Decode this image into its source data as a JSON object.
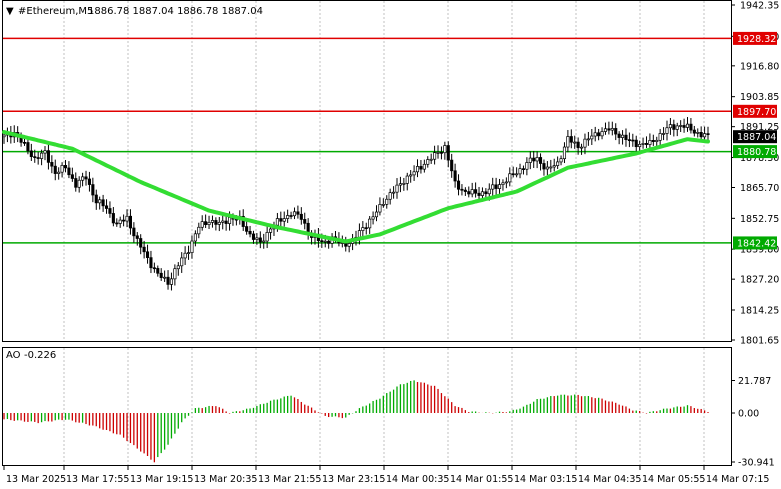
{
  "header": {
    "marker": "▼",
    "symbol_timeframe": "#Ethereum,M5",
    "ohlc": "1886.78 1887.04 1886.78 1887.04"
  },
  "ao_header": {
    "label": "AO",
    "value": "-0.226"
  },
  "price_axis": {
    "ticks": [
      "1942.35",
      "1929.20",
      "1916.80",
      "1903.85",
      "1891.25",
      "1878.30",
      "1865.70",
      "1852.75",
      "1839.80",
      "1827.20",
      "1814.25",
      "1801.65"
    ],
    "ylim": [
      1801.65,
      1942.35
    ]
  },
  "ao_axis": {
    "ticks": [
      "21.787",
      "0.00",
      "-30.941"
    ],
    "ylim": [
      -30.941,
      21.787
    ]
  },
  "time_axis": {
    "labels": [
      "13 Mar 2025",
      "13 Mar 17:55",
      "13 Mar 19:15",
      "13 Mar 20:35",
      "13 Mar 21:55",
      "13 Mar 23:15",
      "14 Mar 00:35",
      "14 Mar 01:55",
      "14 Mar 03:15",
      "14 Mar 04:35",
      "14 Mar 05:55",
      "14 Mar 07:15"
    ]
  },
  "levels": [
    {
      "value": "1928.32",
      "color": "#e00000"
    },
    {
      "value": "1897.70",
      "color": "#e00000"
    },
    {
      "value": "1880.78",
      "color": "#00aa00"
    },
    {
      "value": "1842.42",
      "color": "#00aa00"
    }
  ],
  "current_price": "1887.04",
  "colors": {
    "candle": "#000000",
    "ma_line": "#33dd33",
    "ao_up": "#00aa00",
    "ao_down": "#cc0000",
    "grid": "#999999",
    "current_tag": "#000000"
  },
  "chart_data": {
    "type": "candlestick",
    "x_labels": [
      "13 Mar 2025",
      "13 Mar 17:55",
      "13 Mar 19:15",
      "13 Mar 20:35",
      "13 Mar 21:55",
      "13 Mar 23:15",
      "14 Mar 00:35",
      "14 Mar 01:55",
      "14 Mar 03:15",
      "14 Mar 04:35",
      "14 Mar 05:55",
      "14 Mar 07:15"
    ],
    "close_keypoints": [
      [
        0,
        1887
      ],
      [
        3,
        1889
      ],
      [
        6,
        1883
      ],
      [
        9,
        1878
      ],
      [
        12,
        1880
      ],
      [
        15,
        1872
      ],
      [
        18,
        1874
      ],
      [
        21,
        1867
      ],
      [
        24,
        1870
      ],
      [
        27,
        1860
      ],
      [
        30,
        1857
      ],
      [
        33,
        1850
      ],
      [
        36,
        1853
      ],
      [
        39,
        1843
      ],
      [
        42,
        1836
      ],
      [
        45,
        1829
      ],
      [
        48,
        1826
      ],
      [
        51,
        1833
      ],
      [
        54,
        1840
      ],
      [
        57,
        1849
      ],
      [
        60,
        1852
      ],
      [
        63,
        1850
      ],
      [
        66,
        1853
      ],
      [
        69,
        1852
      ],
      [
        72,
        1846
      ],
      [
        75,
        1842
      ],
      [
        78,
        1849
      ],
      [
        81,
        1852
      ],
      [
        84,
        1855
      ],
      [
        87,
        1853
      ],
      [
        90,
        1845
      ],
      [
        93,
        1843
      ],
      [
        96,
        1844
      ],
      [
        99,
        1842
      ],
      [
        102,
        1843
      ],
      [
        105,
        1849
      ],
      [
        108,
        1853
      ],
      [
        111,
        1860
      ],
      [
        114,
        1864
      ],
      [
        117,
        1869
      ],
      [
        120,
        1872
      ],
      [
        123,
        1876
      ],
      [
        126,
        1879
      ],
      [
        129,
        1883
      ],
      [
        132,
        1867
      ],
      [
        135,
        1864
      ],
      [
        138,
        1863
      ],
      [
        141,
        1864
      ],
      [
        144,
        1866
      ],
      [
        147,
        1869
      ],
      [
        150,
        1872
      ],
      [
        153,
        1876
      ],
      [
        156,
        1878
      ],
      [
        159,
        1873
      ],
      [
        162,
        1876
      ],
      [
        165,
        1886
      ],
      [
        168,
        1883
      ],
      [
        171,
        1886
      ],
      [
        174,
        1889
      ],
      [
        177,
        1890
      ],
      [
        180,
        1888
      ],
      [
        183,
        1885
      ],
      [
        186,
        1884
      ],
      [
        189,
        1884
      ],
      [
        192,
        1888
      ],
      [
        195,
        1891
      ],
      [
        198,
        1892
      ],
      [
        201,
        1890
      ],
      [
        204,
        1888
      ],
      [
        206,
        1887.04
      ]
    ],
    "ma_keypoints": [
      [
        0,
        1889
      ],
      [
        20,
        1882
      ],
      [
        40,
        1868
      ],
      [
        60,
        1856
      ],
      [
        80,
        1849
      ],
      [
        100,
        1843
      ],
      [
        110,
        1846
      ],
      [
        130,
        1857
      ],
      [
        150,
        1864
      ],
      [
        165,
        1874
      ],
      [
        185,
        1880
      ],
      [
        200,
        1886
      ],
      [
        206,
        1885
      ]
    ],
    "ao_keypoints": [
      [
        0,
        -4
      ],
      [
        10,
        -6
      ],
      [
        18,
        -4
      ],
      [
        26,
        -8
      ],
      [
        34,
        -14
      ],
      [
        40,
        -24
      ],
      [
        44,
        -30.9
      ],
      [
        48,
        -20
      ],
      [
        52,
        -6
      ],
      [
        56,
        3
      ],
      [
        62,
        5
      ],
      [
        66,
        0
      ],
      [
        72,
        3
      ],
      [
        78,
        8
      ],
      [
        84,
        12
      ],
      [
        88,
        6
      ],
      [
        94,
        -2
      ],
      [
        100,
        -3
      ],
      [
        104,
        3
      ],
      [
        110,
        10
      ],
      [
        116,
        19
      ],
      [
        120,
        21.8
      ],
      [
        126,
        18
      ],
      [
        132,
        5
      ],
      [
        136,
        1
      ],
      [
        142,
        0
      ],
      [
        148,
        1
      ],
      [
        152,
        4
      ],
      [
        156,
        9
      ],
      [
        162,
        12
      ],
      [
        168,
        12
      ],
      [
        174,
        10
      ],
      [
        180,
        6
      ],
      [
        184,
        2
      ],
      [
        188,
        0
      ],
      [
        194,
        3
      ],
      [
        200,
        5
      ],
      [
        206,
        1
      ]
    ],
    "num_bars": 207,
    "ylim": [
      1801.65,
      1942.35
    ],
    "ao_ylim": [
      -30.941,
      21.787
    ]
  }
}
